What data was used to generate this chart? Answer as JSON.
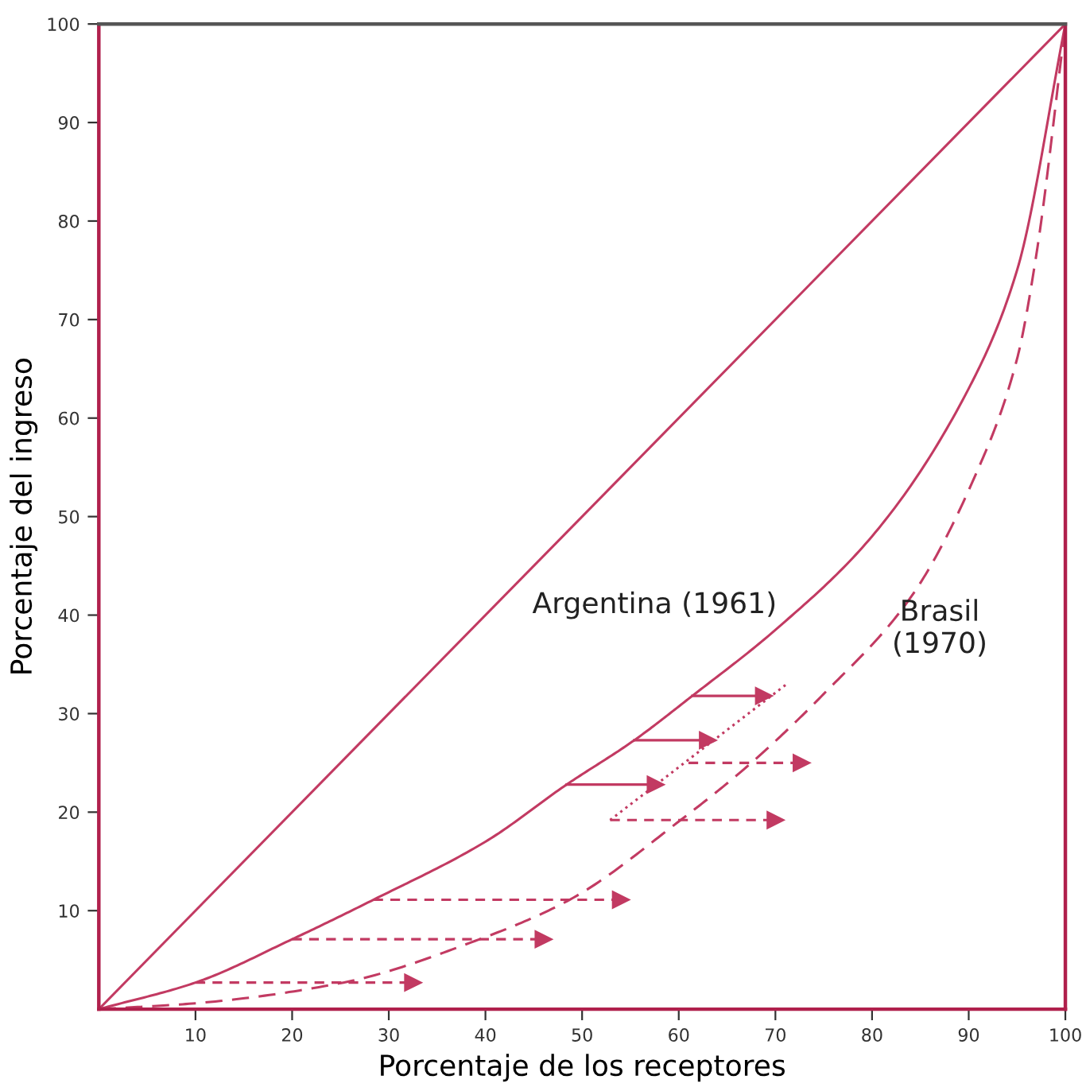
{
  "chart_data": {
    "type": "line",
    "xlabel": "Porcentaje de los receptores",
    "ylabel": "Porcentaje del ingreso",
    "xlim": [
      0,
      100
    ],
    "ylim": [
      0,
      100
    ],
    "xticks": [
      10,
      20,
      30,
      40,
      50,
      60,
      70,
      80,
      90,
      100
    ],
    "yticks": [
      10,
      20,
      30,
      40,
      50,
      60,
      70,
      80,
      90,
      100
    ],
    "grid": false,
    "legend": false,
    "marker": "none",
    "series": [
      {
        "color": "#c23a62",
        "line_style": "solid",
        "x": [
          0,
          100
        ],
        "values": [
          0,
          100
        ]
      },
      {
        "color": "#c23a62",
        "line_style": "solid",
        "x": [
          0,
          10,
          20,
          28.4,
          40,
          48.4,
          55.4,
          61.4,
          70,
          80,
          90,
          95,
          100
        ],
        "values": [
          0,
          2.7,
          7.1,
          11.1,
          17,
          22.8,
          27.3,
          31.8,
          38.5,
          48,
          63,
          75,
          100
        ]
      },
      {
        "color": "#c23a62",
        "line_style": "dashed",
        "x": [
          0,
          10,
          25.3,
          39.4,
          48.7,
          60.2,
          67.5,
          75,
          84,
          90.6,
          95,
          97,
          100
        ],
        "values": [
          0,
          0.6,
          2.7,
          7.1,
          11.1,
          19.2,
          25,
          32,
          41.8,
          54,
          66,
          76.6,
          100
        ]
      },
      {
        "color": "#c23a62",
        "line_style": "dotted",
        "x": [
          52.9,
          71.3
        ],
        "values": [
          19.2,
          33.1
        ]
      },
      {
        "marker": "triangle",
        "color": "#c23a62",
        "line_style": "dashed",
        "x": [
          10,
          32.5
        ],
        "values": [
          2.7,
          2.7
        ]
      },
      {
        "marker": "triangle",
        "color": "#c23a62",
        "line_style": "dashed",
        "x": [
          20,
          46
        ],
        "values": [
          7.1,
          7.1
        ]
      },
      {
        "marker": "triangle",
        "color": "#c23a62",
        "line_style": "dashed",
        "x": [
          28.4,
          54
        ],
        "values": [
          11.1,
          11.1
        ]
      },
      {
        "marker": "triangle",
        "color": "#c23a62",
        "line_style": "solid",
        "x": [
          48.4,
          57.6
        ],
        "values": [
          22.8,
          22.8
        ]
      },
      {
        "marker": "triangle",
        "color": "#c23a62",
        "line_style": "solid",
        "x": [
          55.4,
          63
        ],
        "values": [
          27.3,
          27.3
        ]
      },
      {
        "marker": "triangle",
        "color": "#c23a62",
        "line_style": "solid",
        "x": [
          61.4,
          68.8
        ],
        "values": [
          31.8,
          31.8
        ]
      },
      {
        "marker": "triangle",
        "color": "#c23a62",
        "line_style": "dashed",
        "x": [
          52.9,
          70
        ],
        "values": [
          19.2,
          19.2
        ]
      },
      {
        "marker": "triangle",
        "color": "#c23a62",
        "line_style": "dashed",
        "x": [
          61,
          72.7
        ],
        "values": [
          25,
          25
        ]
      }
    ],
    "annotations": [
      "Argentina (1961)",
      "Brasil\n(1970)"
    ]
  }
}
